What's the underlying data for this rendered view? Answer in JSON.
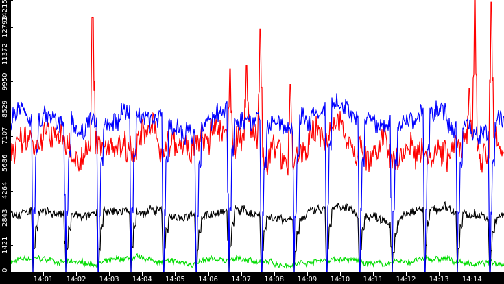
{
  "chart_data": {
    "type": "line",
    "title": "",
    "xlabel": "",
    "ylabel": "",
    "ylim": [
      0,
      14215
    ],
    "grid": false,
    "legend": null,
    "y_ticks": [
      "0",
      "1421",
      "2843",
      "4264",
      "5686",
      "7107",
      "8529",
      "9950",
      "11372",
      "12793",
      "14215"
    ],
    "x_ticks": [
      "14:01",
      "14:02",
      "14:03",
      "14:04",
      "14:05",
      "14:06",
      "14:07",
      "14:08",
      "14:09",
      "14:10",
      "14:11",
      "14:12",
      "14:13",
      "14:14"
    ],
    "x_range": [
      "~14:00:40",
      "~14:14:58"
    ],
    "periodic_dips_every_sec": 60,
    "series": [
      {
        "name": "blue",
        "color": "#0000ff",
        "typical": 7900,
        "range": [
          5400,
          9300
        ],
        "dips_to": 0,
        "description": "oscillates ~6500-9200, drops sharply to ~0 roughly once per minute"
      },
      {
        "name": "red",
        "color": "#ff0000",
        "typical": 6700,
        "range": [
          5000,
          8000
        ],
        "spikes": [
          {
            "time": "14:02:30",
            "value": 13300
          },
          {
            "time": "14:06:40",
            "value": 10600
          },
          {
            "time": "14:07:10",
            "value": 10800
          },
          {
            "time": "14:07:35",
            "value": 12700
          },
          {
            "time": "14:08:30",
            "value": 9800
          },
          {
            "time": "14:13:55",
            "value": 9600
          },
          {
            "time": "14:14:05",
            "value": 14215
          },
          {
            "time": "14:14:35",
            "value": 14100
          }
        ]
      },
      {
        "name": "black",
        "color": "#000000",
        "typical": 3000,
        "range": [
          2700,
          3500
        ],
        "dips_to": 0
      },
      {
        "name": "green",
        "color": "#00dd00",
        "typical": 550,
        "range": [
          350,
          900
        ]
      }
    ]
  },
  "axis": {
    "bg": "#000000",
    "label_color": "#ffffff"
  }
}
